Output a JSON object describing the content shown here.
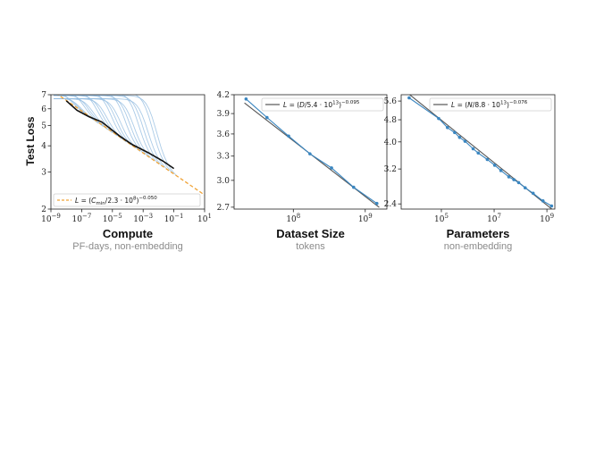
{
  "ylabel": "Test Loss",
  "chart_data": [
    {
      "type": "line",
      "xlabel": "Compute",
      "xsublabel": "PF-days, non-embedding",
      "xscale": "log",
      "yscale": "log",
      "xlim": [
        1e-09,
        10
      ],
      "ylim": [
        2,
        7
      ],
      "x_ticks": [
        1e-09,
        1e-07,
        1e-05,
        0.001,
        0.1,
        10
      ],
      "x_tick_labels": [
        [
          "10",
          "−9"
        ],
        [
          "10",
          "−7"
        ],
        [
          "10",
          "−5"
        ],
        [
          "10",
          "−3"
        ],
        [
          "10",
          "−1"
        ],
        [
          "10",
          "1"
        ]
      ],
      "y_ticks": [
        2,
        3,
        4,
        5,
        6,
        7
      ],
      "y_tick_labels": [
        "2",
        "3",
        "4",
        "5",
        "6",
        "7"
      ],
      "legend": {
        "position": "bottom-left",
        "label": "L = (C_min/2.3·10^8)^−0.050",
        "style": "dashed",
        "color": "#f0a336"
      },
      "fit": {
        "coef": 230000000.0,
        "exponent": -0.05,
        "color": "#f0a336",
        "style": "dashed"
      },
      "frontier": {
        "color": "#111111",
        "points": [
          [
            1e-08,
            6.55
          ],
          [
            5e-08,
            5.9
          ],
          [
            3e-07,
            5.5
          ],
          [
            2e-06,
            5.2
          ],
          [
            8e-06,
            4.8
          ],
          [
            3e-05,
            4.45
          ],
          [
            0.0002,
            4.05
          ],
          [
            0.002,
            3.72
          ],
          [
            0.02,
            3.38
          ],
          [
            0.1,
            3.12
          ]
        ]
      },
      "runs_color": "#8fbadf",
      "runs": [
        {
          "end": 3e-07
        },
        {
          "end": 6e-07
        },
        {
          "end": 1.2e-06
        },
        {
          "end": 2.5e-06
        },
        {
          "end": 5e-06
        },
        {
          "end": 1e-05
        },
        {
          "end": 2e-05
        },
        {
          "end": 4e-05
        },
        {
          "end": 8e-05
        },
        {
          "end": 0.00016
        },
        {
          "end": 0.00032
        },
        {
          "end": 0.00064
        },
        {
          "end": 0.0013
        },
        {
          "end": 0.0026
        },
        {
          "end": 0.005
        },
        {
          "end": 0.01
        },
        {
          "end": 0.02
        },
        {
          "end": 0.04
        },
        {
          "end": 0.08
        },
        {
          "end": 0.15
        }
      ]
    },
    {
      "type": "line",
      "xlabel": "Dataset Size",
      "xsublabel": "tokens",
      "xscale": "log",
      "yscale": "log",
      "xlim": [
        15000000.0,
        2000000000.0
      ],
      "ylim": [
        2.68,
        4.2
      ],
      "x_ticks": [
        100000000.0,
        1000000000.0
      ],
      "x_tick_labels": [
        [
          "10",
          "8"
        ],
        [
          "10",
          "9"
        ]
      ],
      "y_ticks": [
        2.7,
        3.0,
        3.3,
        3.6,
        3.9,
        4.2
      ],
      "y_tick_labels": [
        "2.7",
        "3.0",
        "3.3",
        "3.6",
        "3.9",
        "4.2"
      ],
      "legend": {
        "position": "top-right",
        "label": "L = (D/5.4·10^13)^−0.095",
        "style": "solid",
        "color": "#555555"
      },
      "fit": {
        "coef": 54000000000000.0,
        "exponent": -0.095,
        "color": "#555555",
        "style": "solid"
      },
      "series_color": "#3a86c0",
      "x": [
        22000000.0,
        43000000.0,
        86000000.0,
        170000000.0,
        340000000.0,
        690000000.0,
        1450000000.0
      ],
      "y": [
        4.13,
        3.84,
        3.57,
        3.33,
        3.15,
        2.92,
        2.74
      ]
    },
    {
      "type": "line",
      "xlabel": "Parameters",
      "xsublabel": "non-embedding",
      "xscale": "log",
      "yscale": "log",
      "xlim": [
        3000.0,
        2000000000.0
      ],
      "ylim": [
        2.3,
        5.9
      ],
      "x_ticks": [
        100000.0,
        10000000.0,
        1000000000.0
      ],
      "x_tick_labels": [
        [
          "10",
          "5"
        ],
        [
          "10",
          "7"
        ],
        [
          "10",
          "9"
        ]
      ],
      "y_ticks": [
        2.4,
        3.2,
        4.0,
        4.8,
        5.6
      ],
      "y_tick_labels": [
        "2.4",
        "3.2",
        "4.0",
        "4.8",
        "5.6"
      ],
      "legend": {
        "position": "top-right",
        "label": "L = (N/8.8·10^13)^−0.076",
        "style": "solid",
        "color": "#555555"
      },
      "fit": {
        "coef": 88000000000000.0,
        "exponent": -0.076,
        "color": "#555555",
        "style": "solid"
      },
      "series_color": "#3a86c0",
      "x": [
        6000.0,
        79000.0,
        170000.0,
        320000.0,
        490000.0,
        790000.0,
        1600000.0,
        2500000.0,
        5500000.0,
        10500000.0,
        18000000.0,
        36000000.0,
        56000000.0,
        85000000.0,
        150000000.0,
        300000000.0,
        710000000.0,
        1500000000.0
      ],
      "y": [
        5.75,
        4.85,
        4.5,
        4.32,
        4.15,
        4.02,
        3.78,
        3.65,
        3.46,
        3.3,
        3.16,
        3.0,
        2.93,
        2.86,
        2.74,
        2.62,
        2.46,
        2.36
      ]
    }
  ]
}
